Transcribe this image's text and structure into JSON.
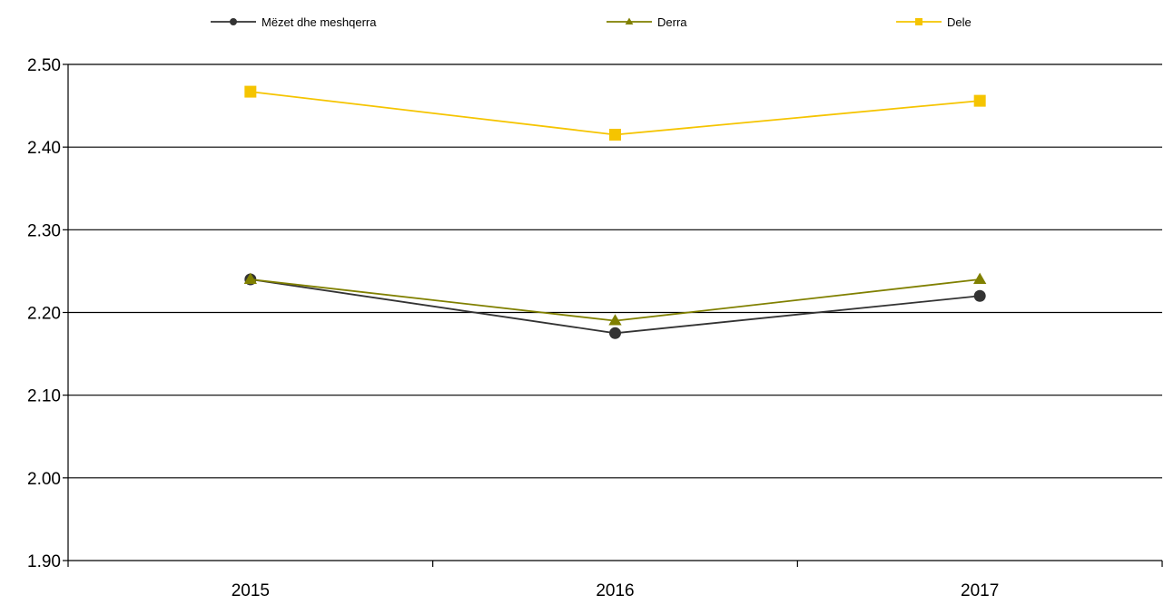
{
  "chart_data": {
    "type": "line",
    "categories": [
      "2015",
      "2016",
      "2017"
    ],
    "series": [
      {
        "name": "Mëzet dhe meshqerra",
        "values": [
          2.24,
          2.175,
          2.22
        ],
        "color": "#333333",
        "marker": "circle"
      },
      {
        "name": "Derra",
        "values": [
          2.24,
          2.19,
          2.24
        ],
        "color": "#808000",
        "marker": "triangle"
      },
      {
        "name": "Dele",
        "values": [
          2.467,
          2.415,
          2.456
        ],
        "color": "#f5c400",
        "marker": "square"
      }
    ],
    "ylim": [
      1.9,
      2.5
    ],
    "yticks": [
      "1.90",
      "2.00",
      "2.10",
      "2.20",
      "2.30",
      "2.40",
      "2.50"
    ],
    "grid": true,
    "legend_position": "top"
  }
}
